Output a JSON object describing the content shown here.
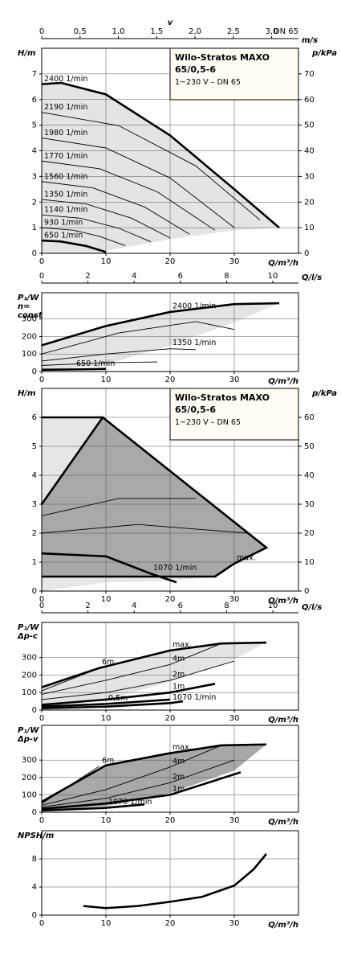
{
  "chart_data": [
    {
      "type": "line",
      "info": [
        "Wilo-Stratos MAXO",
        "65/0,5-6",
        "1~230 V – DN 65"
      ],
      "y_label": [
        "H/m"
      ],
      "x_label": "Q/m³/h",
      "y2_label": "p/kPa",
      "xlim": [
        0,
        40
      ],
      "xticks": [
        0,
        10,
        20,
        30
      ],
      "ylim": [
        0,
        8
      ],
      "yticks": [
        0,
        1,
        2,
        3,
        4,
        5,
        6,
        7
      ],
      "y2lim": [
        0,
        80
      ],
      "y2ticks": [
        0,
        10,
        20,
        30,
        40,
        50,
        60,
        70
      ],
      "x2_label": "v",
      "x2_unit": "m/s",
      "x2_note": "DN 65",
      "x2lim": [
        0,
        3.35
      ],
      "x2ticks": [
        0,
        {
          "value": 0.5,
          "label": "0,5"
        },
        {
          "value": 1,
          "label": "1,0"
        },
        {
          "value": 1.5,
          "label": "1,5"
        },
        {
          "value": 2,
          "label": "2,0"
        },
        {
          "value": 2.5,
          "label": "2,5"
        },
        {
          "value": 3,
          "label": "3,0"
        }
      ],
      "grid": true,
      "regions": [
        {
          "color": "#e4e4e4",
          "x": [
            0,
            3,
            10,
            20,
            30,
            37,
            30,
            20,
            10,
            9,
            0
          ],
          "values": [
            6.6,
            6.65,
            6.2,
            4.6,
            2.5,
            1.0,
            0.9,
            0.55,
            0.1,
            0,
            0
          ]
        }
      ],
      "series": [
        {
          "name": "2400 1/min",
          "color": "#000000",
          "bold": true,
          "x": [
            0,
            3,
            10,
            20,
            30,
            37
          ],
          "values": [
            6.6,
            6.65,
            6.2,
            4.6,
            2.5,
            1.0
          ]
        },
        {
          "name": "2190 1/min",
          "color": "#000000",
          "x": [
            0,
            12,
            24,
            34
          ],
          "values": [
            5.5,
            4.98,
            3.41,
            1.3
          ]
        },
        {
          "name": "1980 1/min",
          "color": "#000000",
          "x": [
            0,
            10,
            20,
            30
          ],
          "values": [
            4.5,
            4.11,
            2.94,
            1.0
          ]
        },
        {
          "name": "1770 1/min",
          "color": "#000000",
          "x": [
            0,
            9,
            18,
            27
          ],
          "values": [
            3.6,
            3.3,
            2.4,
            0.9
          ]
        },
        {
          "name": "1560 1/min",
          "color": "#000000",
          "x": [
            0,
            8,
            16,
            23
          ],
          "values": [
            2.8,
            2.55,
            1.81,
            0.75
          ]
        },
        {
          "name": "1350 1/min",
          "color": "#000000",
          "x": [
            0,
            7,
            14,
            20
          ],
          "values": [
            2.1,
            1.92,
            1.37,
            0.6
          ]
        },
        {
          "name": "1140 1/min",
          "color": "#000000",
          "x": [
            0,
            6,
            12,
            17
          ],
          "values": [
            1.5,
            1.37,
            0.98,
            0.45
          ]
        },
        {
          "name": "930 1/min",
          "color": "#000000",
          "x": [
            0,
            5,
            9,
            13
          ],
          "values": [
            1.0,
            0.9,
            0.66,
            0.3
          ]
        },
        {
          "name": "650 1/min",
          "color": "#000000",
          "bold": true,
          "x": [
            0,
            3,
            7,
            10
          ],
          "values": [
            0.5,
            0.46,
            0.28,
            0.05
          ]
        }
      ]
    },
    {
      "type": "line",
      "y_label": [
        "P₁/W",
        "n=",
        "const"
      ],
      "x_label": "Q/m³/h",
      "xlim": [
        0,
        40
      ],
      "xticks": [
        0,
        10,
        20,
        30
      ],
      "ylim": [
        0,
        450
      ],
      "yticks": [
        0,
        100,
        200,
        300
      ],
      "x2_label": "Q/l/s",
      "x2lim": [
        0,
        11.11
      ],
      "x2ticks": [
        0,
        2,
        4,
        6,
        8,
        10
      ],
      "grid": true,
      "regions": [
        {
          "color": "#e4e4e4",
          "x": [
            0,
            10,
            20,
            30,
            37,
            30,
            20,
            10,
            0
          ],
          "values": [
            150,
            260,
            340,
            385,
            390,
            280,
            150,
            40,
            0
          ]
        }
      ],
      "series": [
        {
          "name": "2400 1/min",
          "color": "#000000",
          "bold": true,
          "x": [
            0,
            10,
            20,
            30,
            37
          ],
          "values": [
            150,
            260,
            340,
            385,
            390
          ]
        },
        {
          "color": "#000000",
          "x": [
            0,
            12,
            24,
            30
          ],
          "values": [
            100,
            220,
            285,
            240
          ]
        },
        {
          "name": "1350 1/min",
          "color": "#000000",
          "x": [
            0,
            10,
            20,
            24
          ],
          "values": [
            60,
            100,
            130,
            125
          ]
        },
        {
          "color": "#000000",
          "x": [
            0,
            10,
            18
          ],
          "values": [
            35,
            50,
            55
          ]
        },
        {
          "name": "650 1/min",
          "color": "#000000",
          "bold": true,
          "x": [
            0,
            5,
            10
          ],
          "values": [
            10,
            12,
            15
          ]
        }
      ]
    },
    {
      "type": "line",
      "info": [
        "Wilo-Stratos MAXO",
        "65/0,5-6",
        "1~230 V – DN 65"
      ],
      "y_label": [
        "H/m"
      ],
      "x_label": "Q/m³/h",
      "y2_label": "p/kPa",
      "xlim": [
        0,
        40
      ],
      "xticks": [
        0,
        10,
        20,
        30
      ],
      "ylim": [
        0,
        7
      ],
      "yticks": [
        0,
        1,
        2,
        3,
        4,
        5,
        6
      ],
      "y2lim": [
        0,
        70
      ],
      "y2ticks": [
        0,
        10,
        20,
        30,
        40,
        50,
        60
      ],
      "grid": true,
      "regions": [
        {
          "color": "#e6e6e6",
          "x": [
            0,
            9.5,
            35,
            30,
            27,
            20,
            10,
            0
          ],
          "values": [
            6,
            6,
            1.5,
            0.95,
            0.5,
            0.35,
            0.3,
            0
          ]
        },
        {
          "color": "#a8a8a8",
          "x": [
            0,
            9.5,
            35,
            30,
            27,
            0
          ],
          "values": [
            3,
            6,
            1.5,
            0.95,
            0.5,
            0.5
          ]
        }
      ],
      "series": [
        {
          "name": "max.",
          "color": "#000000",
          "bold": true,
          "x": [
            0,
            9.5,
            35,
            30,
            27,
            0
          ],
          "values": [
            3,
            6,
            1.5,
            0.95,
            0.5,
            0.5
          ]
        },
        {
          "color": "#000000",
          "bold": true,
          "x": [
            0,
            9.5
          ],
          "values": [
            6,
            6
          ]
        },
        {
          "color": "#000000",
          "x": [
            0,
            15,
            32
          ],
          "values": [
            2.0,
            2.3,
            2.0
          ]
        },
        {
          "color": "#000000",
          "x": [
            0,
            12,
            24
          ],
          "values": [
            2.6,
            3.2,
            3.2
          ]
        },
        {
          "name": "1070 1/min",
          "color": "#000000",
          "bold": true,
          "x": [
            0,
            10,
            17,
            21
          ],
          "values": [
            1.3,
            1.2,
            0.6,
            0.3
          ]
        }
      ]
    },
    {
      "type": "line",
      "y_label": [
        "P₁/W",
        "Δp-c"
      ],
      "x_label": "Q/m³/h",
      "xlim": [
        0,
        40
      ],
      "xticks": [
        0,
        10,
        20,
        30
      ],
      "ylim": [
        0,
        500
      ],
      "yticks": [
        0,
        100,
        200,
        300
      ],
      "x2_label": "Q/l/s",
      "x2lim": [
        0,
        11.11
      ],
      "x2ticks": [
        0,
        2,
        4,
        6,
        8,
        10
      ],
      "grid": true,
      "regions": [
        {
          "color": "#e4e4e4",
          "x": [
            0,
            9,
            20,
            28,
            35,
            30,
            20,
            10,
            0
          ],
          "values": [
            130,
            240,
            340,
            380,
            385,
            290,
            160,
            60,
            20
          ]
        }
      ],
      "series": [
        {
          "name": "max.",
          "color": "#000000",
          "bold": true,
          "x": [
            0,
            9,
            20,
            28,
            35
          ],
          "values": [
            130,
            240,
            340,
            380,
            385
          ]
        },
        {
          "name": "6m",
          "color": "#000000",
          "x": [
            0,
            9
          ],
          "values": [
            110,
            240
          ]
        },
        {
          "name": "4m",
          "color": "#000000",
          "x": [
            0,
            10,
            20,
            28
          ],
          "values": [
            90,
            170,
            260,
            380
          ]
        },
        {
          "name": "2m",
          "color": "#000000",
          "x": [
            0,
            10,
            20,
            30
          ],
          "values": [
            60,
            100,
            170,
            280
          ]
        },
        {
          "name": "1m",
          "color": "#000000",
          "bold": true,
          "x": [
            0,
            10,
            20,
            27
          ],
          "values": [
            30,
            60,
            100,
            150
          ]
        },
        {
          "name": "0,5m",
          "color": "#000000",
          "bold": true,
          "x": [
            0,
            10,
            20
          ],
          "values": [
            20,
            35,
            60
          ]
        },
        {
          "name": "1070 1/min",
          "color": "#000000",
          "bold": true,
          "x": [
            0,
            10,
            20,
            22
          ],
          "values": [
            10,
            20,
            40,
            50
          ]
        }
      ]
    },
    {
      "type": "line",
      "y_label": [
        "P₁/W",
        "Δp-v"
      ],
      "x_label": "Q/m³/h",
      "xlim": [
        0,
        40
      ],
      "xticks": [
        0,
        10,
        20,
        30
      ],
      "ylim": [
        0,
        500
      ],
      "yticks": [
        0,
        100,
        200,
        300
      ],
      "grid": true,
      "regions": [
        {
          "color": "#a8a8a8",
          "x": [
            0,
            10,
            20,
            28,
            35,
            30,
            20,
            10,
            0
          ],
          "values": [
            60,
            270,
            340,
            385,
            390,
            240,
            110,
            35,
            10
          ]
        }
      ],
      "series": [
        {
          "name": "max.",
          "color": "#000000",
          "bold": true,
          "x": [
            0,
            10,
            20,
            28,
            35
          ],
          "values": [
            60,
            270,
            340,
            385,
            390
          ]
        },
        {
          "name": "6m",
          "color": "#000000",
          "x": [
            0,
            9
          ],
          "values": [
            50,
            265
          ]
        },
        {
          "name": "4m",
          "color": "#000000",
          "x": [
            0,
            10,
            20,
            28
          ],
          "values": [
            40,
            130,
            260,
            385
          ]
        },
        {
          "name": "2m",
          "color": "#000000",
          "x": [
            0,
            10,
            20,
            30
          ],
          "values": [
            30,
            80,
            170,
            300
          ]
        },
        {
          "name": "1m",
          "color": "#000000",
          "bold": true,
          "x": [
            0,
            10,
            20,
            31
          ],
          "values": [
            20,
            50,
            100,
            230
          ]
        },
        {
          "name": "1070 1/min",
          "color": "#000000",
          "bold": true,
          "x": [
            0,
            10,
            16
          ],
          "values": [
            10,
            25,
            45
          ]
        }
      ]
    },
    {
      "type": "line",
      "y_label": [
        "NPSH/m"
      ],
      "x_label": "Q/m³/h",
      "xlim": [
        0,
        40
      ],
      "xticks": [
        0,
        10,
        20,
        30
      ],
      "ylim": [
        0,
        12
      ],
      "yticks": [
        0,
        4,
        8
      ],
      "grid": true,
      "series": [
        {
          "color": "#000000",
          "bold": true,
          "x": [
            6.5,
            10,
            15,
            20,
            25,
            30,
            33,
            35
          ],
          "values": [
            1.3,
            1.0,
            1.3,
            1.9,
            2.6,
            4.2,
            6.5,
            8.7
          ]
        }
      ]
    }
  ]
}
